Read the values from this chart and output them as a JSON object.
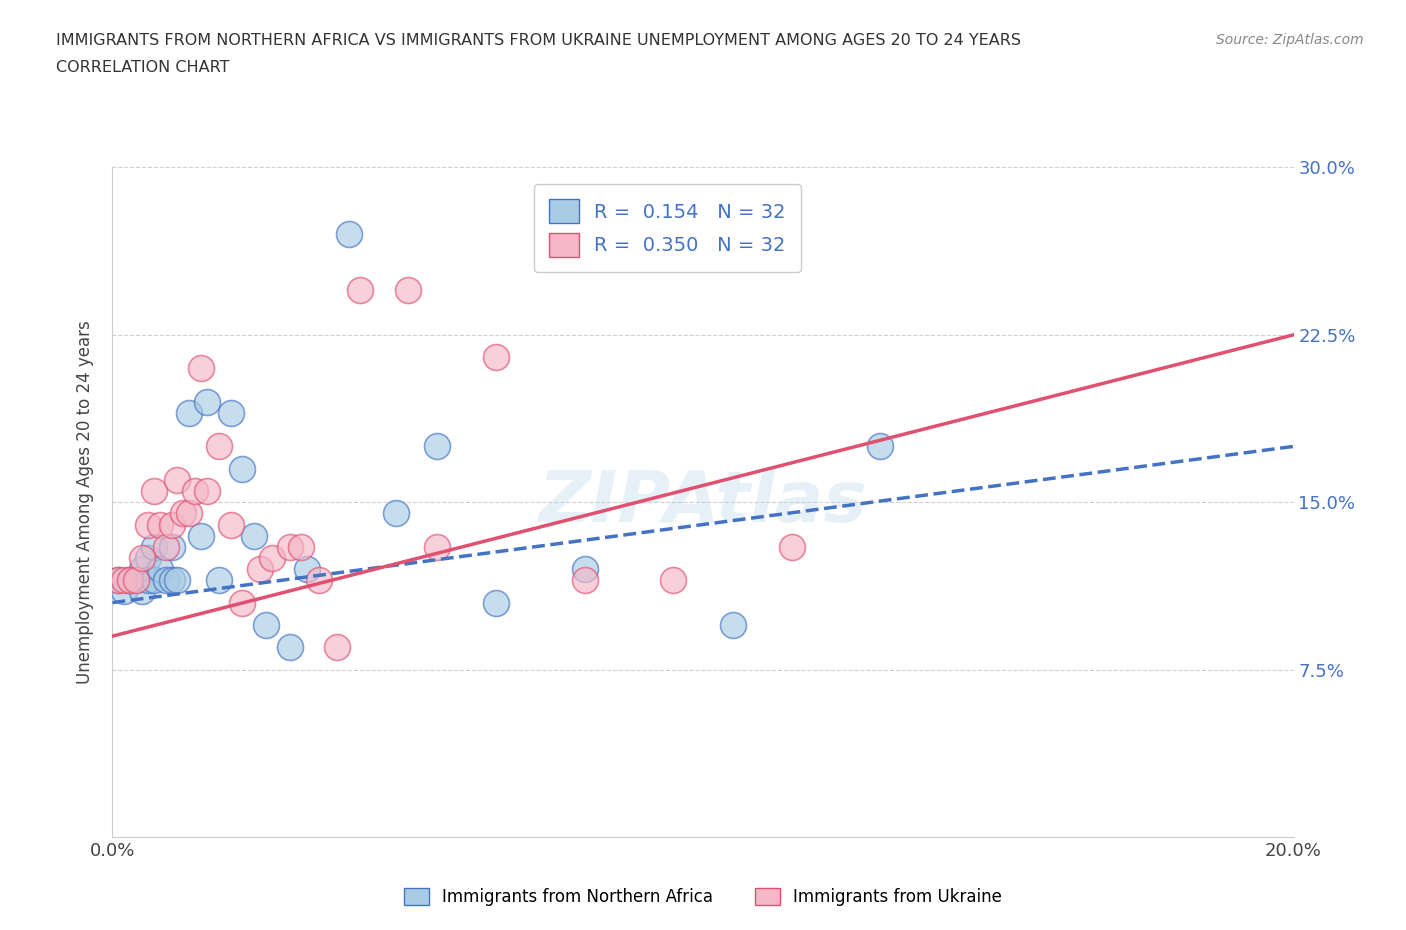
{
  "title_line1": "IMMIGRANTS FROM NORTHERN AFRICA VS IMMIGRANTS FROM UKRAINE UNEMPLOYMENT AMONG AGES 20 TO 24 YEARS",
  "title_line2": "CORRELATION CHART",
  "source": "Source: ZipAtlas.com",
  "ylabel": "Unemployment Among Ages 20 to 24 years",
  "legend_label_blue": "Immigrants from Northern Africa",
  "legend_label_pink": "Immigrants from Ukraine",
  "R_blue": 0.154,
  "N_blue": 32,
  "R_pink": 0.35,
  "N_pink": 32,
  "xlim": [
    0.0,
    0.2
  ],
  "ylim": [
    0.0,
    0.3
  ],
  "xticks": [
    0.0,
    0.05,
    0.1,
    0.15,
    0.2
  ],
  "yticks": [
    0.0,
    0.075,
    0.15,
    0.225,
    0.3
  ],
  "xtick_labels": [
    "0.0%",
    "",
    "",
    "",
    "20.0%"
  ],
  "ytick_labels_left": [
    "",
    "",
    "",
    "",
    ""
  ],
  "ytick_labels_right": [
    "",
    "7.5%",
    "15.0%",
    "22.5%",
    "30.0%"
  ],
  "color_blue": "#a8cce4",
  "color_pink": "#f4b8c8",
  "color_line_blue": "#4472c4",
  "color_line_pink": "#e05070",
  "blue_x": [
    0.001,
    0.002,
    0.003,
    0.004,
    0.005,
    0.005,
    0.006,
    0.006,
    0.007,
    0.007,
    0.008,
    0.009,
    0.01,
    0.01,
    0.011,
    0.013,
    0.015,
    0.016,
    0.018,
    0.02,
    0.022,
    0.024,
    0.026,
    0.03,
    0.033,
    0.04,
    0.048,
    0.055,
    0.065,
    0.08,
    0.105,
    0.13
  ],
  "blue_y": [
    0.115,
    0.11,
    0.115,
    0.115,
    0.12,
    0.11,
    0.125,
    0.115,
    0.13,
    0.115,
    0.12,
    0.115,
    0.13,
    0.115,
    0.115,
    0.19,
    0.135,
    0.195,
    0.115,
    0.19,
    0.165,
    0.135,
    0.095,
    0.085,
    0.12,
    0.27,
    0.145,
    0.175,
    0.105,
    0.12,
    0.095,
    0.175
  ],
  "pink_x": [
    0.001,
    0.002,
    0.003,
    0.004,
    0.005,
    0.006,
    0.007,
    0.008,
    0.009,
    0.01,
    0.011,
    0.012,
    0.013,
    0.014,
    0.015,
    0.016,
    0.018,
    0.02,
    0.022,
    0.025,
    0.027,
    0.03,
    0.032,
    0.035,
    0.038,
    0.042,
    0.05,
    0.055,
    0.065,
    0.08,
    0.095,
    0.115
  ],
  "pink_y": [
    0.115,
    0.115,
    0.115,
    0.115,
    0.125,
    0.14,
    0.155,
    0.14,
    0.13,
    0.14,
    0.16,
    0.145,
    0.145,
    0.155,
    0.21,
    0.155,
    0.175,
    0.14,
    0.105,
    0.12,
    0.125,
    0.13,
    0.13,
    0.115,
    0.085,
    0.245,
    0.245,
    0.13,
    0.215,
    0.115,
    0.115,
    0.13
  ],
  "line_blue_x0": 0.0,
  "line_blue_y0": 0.105,
  "line_blue_x1": 0.2,
  "line_blue_y1": 0.175,
  "line_pink_x0": 0.0,
  "line_pink_y0": 0.09,
  "line_pink_x1": 0.2,
  "line_pink_y1": 0.225
}
